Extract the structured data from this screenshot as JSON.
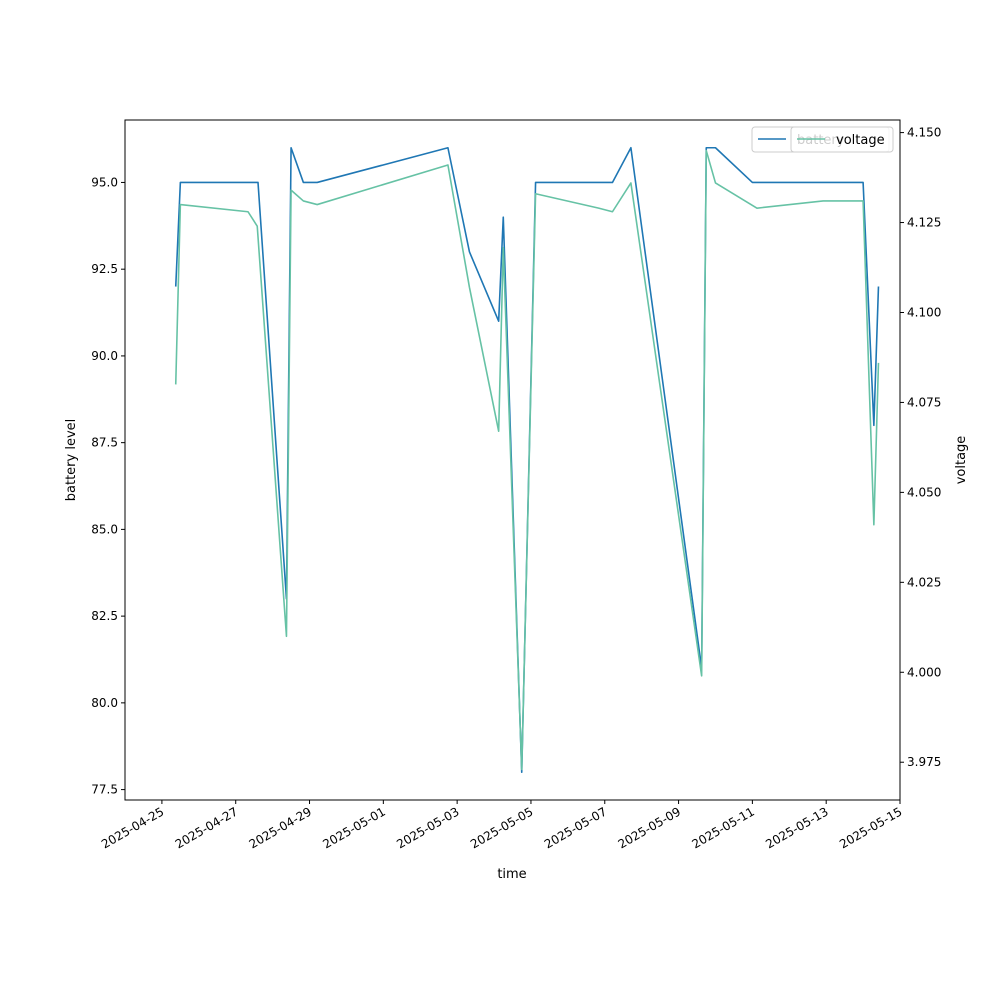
{
  "chart_data": {
    "type": "line",
    "xlabel": "time",
    "ylabel": "battery level",
    "y2label": "voltage",
    "xlim": [
      "2025-04-24",
      "2025-05-15"
    ],
    "ylim": [
      77.2,
      96.8
    ],
    "y2lim": [
      3.9645,
      4.1535
    ],
    "x_ticks": [
      "2025-04-25",
      "2025-04-27",
      "2025-04-29",
      "2025-05-01",
      "2025-05-03",
      "2025-05-05",
      "2025-05-07",
      "2025-05-09",
      "2025-05-11",
      "2025-05-13",
      "2025-05-15"
    ],
    "y_ticks": [
      "77.5",
      "80.0",
      "82.5",
      "85.0",
      "87.5",
      "90.0",
      "92.5",
      "95.0"
    ],
    "y2_ticks": [
      "3.975",
      "4.000",
      "4.025",
      "4.050",
      "4.075",
      "4.100",
      "4.125",
      "4.150"
    ],
    "colors": {
      "battery": "#1f77b4",
      "voltage": "#66c2a5"
    },
    "legend_placement": "upper-right",
    "series": [
      {
        "name": "battery",
        "axis": "left",
        "points": [
          [
            "2025-04-25 09:00",
            92.0
          ],
          [
            "2025-04-25 12:00",
            95.0
          ],
          [
            "2025-04-26 18:00",
            95.0
          ],
          [
            "2025-04-27 14:00",
            95.0
          ],
          [
            "2025-04-27 14:30",
            95.0
          ],
          [
            "2025-04-28 09:00",
            83.0
          ],
          [
            "2025-04-28 12:00",
            96.0
          ],
          [
            "2025-04-28 20:00",
            95.0
          ],
          [
            "2025-04-29 05:00",
            95.0
          ],
          [
            "2025-05-02 18:00",
            96.0
          ],
          [
            "2025-05-03 08:00",
            93.0
          ],
          [
            "2025-05-04 03:00",
            91.0
          ],
          [
            "2025-05-04 06:00",
            94.0
          ],
          [
            "2025-05-04 18:00",
            78.0
          ],
          [
            "2025-05-05 03:00",
            95.0
          ],
          [
            "2025-05-06 20:00",
            95.0
          ],
          [
            "2025-05-07 05:00",
            95.0
          ],
          [
            "2025-05-07 17:00",
            96.0
          ],
          [
            "2025-05-09 15:00",
            81.0
          ],
          [
            "2025-05-09 18:00",
            96.0
          ],
          [
            "2025-05-10 00:00",
            96.0
          ],
          [
            "2025-05-11 00:00",
            95.0
          ],
          [
            "2025-05-13 00:00",
            95.0
          ],
          [
            "2025-05-14 00:00",
            95.0
          ],
          [
            "2025-05-14 07:00",
            88.0
          ],
          [
            "2025-05-14 10:00",
            92.0
          ]
        ]
      },
      {
        "name": "voltage",
        "axis": "right",
        "points": [
          [
            "2025-04-25 09:00",
            4.08
          ],
          [
            "2025-04-25 12:00",
            4.13
          ],
          [
            "2025-04-27 08:00",
            4.128
          ],
          [
            "2025-04-27 14:00",
            4.124
          ],
          [
            "2025-04-28 09:00",
            4.01
          ],
          [
            "2025-04-28 12:00",
            4.134
          ],
          [
            "2025-04-28 20:00",
            4.131
          ],
          [
            "2025-04-29 05:00",
            4.13
          ],
          [
            "2025-05-02 18:00",
            4.141
          ],
          [
            "2025-05-03 08:00",
            4.107
          ],
          [
            "2025-05-04 03:00",
            4.067
          ],
          [
            "2025-05-04 06:00",
            4.118
          ],
          [
            "2025-05-04 18:00",
            3.973
          ],
          [
            "2025-05-05 03:00",
            4.133
          ],
          [
            "2025-05-06 20:00",
            4.129
          ],
          [
            "2025-05-07 05:00",
            4.128
          ],
          [
            "2025-05-07 17:00",
            4.136
          ],
          [
            "2025-05-09 15:00",
            3.999
          ],
          [
            "2025-05-09 18:00",
            4.145
          ],
          [
            "2025-05-10 00:00",
            4.136
          ],
          [
            "2025-05-11 03:00",
            4.129
          ],
          [
            "2025-05-12 22:00",
            4.131
          ],
          [
            "2025-05-14 00:00",
            4.131
          ],
          [
            "2025-05-14 07:00",
            4.041
          ],
          [
            "2025-05-14 10:00",
            4.086
          ]
        ]
      }
    ],
    "legends": [
      {
        "items": [
          "battery"
        ]
      },
      {
        "items": [
          "voltage"
        ]
      }
    ]
  }
}
